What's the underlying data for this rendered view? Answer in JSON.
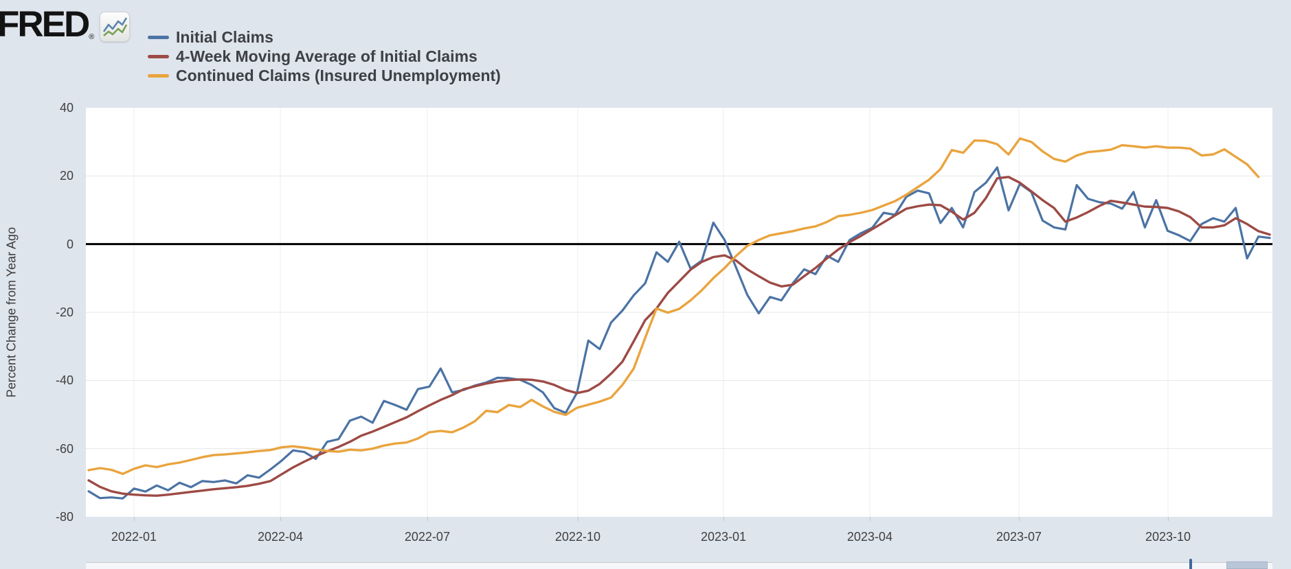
{
  "page": {
    "background": "#dfe5ed"
  },
  "logo": {
    "text": "FRED",
    "registered": "®",
    "icon": "fred-sparkline-icon"
  },
  "legend": {
    "position": "top-left",
    "items": [
      {
        "label": "Initial Claims",
        "color": "#4b73a4"
      },
      {
        "label": "4-Week Moving Average of Initial Claims",
        "color": "#9d4a45"
      },
      {
        "label": "Continued Claims (Insured Unemployment)",
        "color": "#e9a43e"
      }
    ]
  },
  "chart_data": {
    "type": "line",
    "title": "",
    "xlabel": "",
    "ylabel": "Percent Change from Year Ago",
    "ylim": [
      -80,
      40
    ],
    "yticks": [
      40,
      20,
      0,
      -20,
      -40,
      -60,
      -80
    ],
    "zero_line": true,
    "grid": true,
    "x_unit": "week",
    "xticks": [
      {
        "label": "2022-01",
        "i": 3.99
      },
      {
        "label": "2022-04",
        "i": 16.88
      },
      {
        "label": "2022-07",
        "i": 29.82
      },
      {
        "label": "2022-10",
        "i": 43.07
      },
      {
        "label": "2023-01",
        "i": 55.9
      },
      {
        "label": "2023-04",
        "i": 68.78
      },
      {
        "label": "2023-07",
        "i": 81.91
      },
      {
        "label": "2023-10",
        "i": 95.04
      }
    ],
    "series": [
      {
        "name": "Initial Claims",
        "color": "#4b73a4",
        "width": 3.2,
        "values": [
          -72.5,
          -74.5,
          -74.3,
          -74.6,
          -71.7,
          -72.6,
          -70.8,
          -72.2,
          -70,
          -71.3,
          -69.5,
          -69.8,
          -69.3,
          -70.2,
          -67.8,
          -68.5,
          -66.1,
          -63.5,
          -60.5,
          -61,
          -63,
          -58,
          -57.2,
          -51.8,
          -50.6,
          -52.4,
          -46,
          -47.2,
          -48.6,
          -42.5,
          -41.8,
          -36.5,
          -43.5,
          -42.8,
          -41.5,
          -40.6,
          -39.2,
          -39.3,
          -39.8,
          -41.3,
          -43.5,
          -48.1,
          -49.5,
          -43.6,
          -28.3,
          -30.8,
          -23,
          -19.5,
          -15,
          -11.5,
          -2.4,
          -5.2,
          0.7,
          -7.2,
          -4.8,
          6.3,
          1.2,
          -6.8,
          -14.9,
          -20.3,
          -15.5,
          -16.5,
          -11.5,
          -7.4,
          -8.8,
          -3.4,
          -5.2,
          1.2,
          3.2,
          4.8,
          9.2,
          8.6,
          13.9,
          15.7,
          14.9,
          6.2,
          10.6,
          4.9,
          15.3,
          18,
          22.5,
          9.9,
          17.7,
          15.3,
          6.9,
          4.9,
          4.3,
          17.3,
          13.3,
          12.3,
          11.9,
          10.4,
          15.3,
          4.9,
          12.9,
          3.9,
          2.6,
          0.9,
          5.9,
          7.6,
          6.6,
          10.6,
          -4.2,
          2.2,
          1.8
        ]
      },
      {
        "name": "4-Week Moving Average of Initial Claims",
        "color": "#9d4a45",
        "width": 3.4,
        "values": [
          -69.3,
          -71.2,
          -72.5,
          -73.2,
          -73.5,
          -73.7,
          -73.8,
          -73.5,
          -73.1,
          -72.7,
          -72.3,
          -71.9,
          -71.6,
          -71.3,
          -70.9,
          -70.3,
          -69.5,
          -67.5,
          -65.5,
          -63.8,
          -62.2,
          -60.8,
          -59.5,
          -58,
          -56.2,
          -55,
          -53.6,
          -52.2,
          -50.8,
          -49,
          -47.3,
          -45.7,
          -44.3,
          -42.6,
          -41.7,
          -40.9,
          -40.3,
          -39.9,
          -39.7,
          -39.8,
          -40.3,
          -41.3,
          -42.8,
          -43.7,
          -43,
          -41,
          -38,
          -34.5,
          -28.5,
          -22.3,
          -18.9,
          -14.3,
          -10.9,
          -7.5,
          -5.2,
          -3.8,
          -3.3,
          -4.8,
          -7.4,
          -9.4,
          -11.3,
          -12.4,
          -11.9,
          -9.4,
          -7,
          -4.2,
          -1.6,
          0.6,
          2.4,
          4.4,
          6.4,
          8.4,
          10.4,
          11.1,
          11.6,
          11.4,
          9.5,
          7.2,
          9.2,
          13.5,
          19.3,
          19.7,
          18,
          15.5,
          12.9,
          10.6,
          6.6,
          7.8,
          9.4,
          11.2,
          12.7,
          12.2,
          11.6,
          11,
          10.9,
          10.6,
          9.6,
          7.9,
          4.9,
          4.9,
          5.5,
          7.6,
          5.9,
          3.8,
          2.8
        ]
      },
      {
        "name": "Continued Claims (Insured Unemployment)",
        "color": "#e9a43e",
        "width": 3.4,
        "values": [
          -66.3,
          -65.7,
          -66.2,
          -67.4,
          -65.9,
          -64.9,
          -65.4,
          -64.6,
          -64.1,
          -63.3,
          -62.5,
          -61.9,
          -61.7,
          -61.4,
          -61.1,
          -60.7,
          -60.4,
          -59.6,
          -59.3,
          -59.7,
          -60.2,
          -60.7,
          -60.9,
          -60.3,
          -60.5,
          -60,
          -59.1,
          -58.5,
          -58.2,
          -57,
          -55.2,
          -54.8,
          -55.2,
          -53.8,
          -52,
          -48.9,
          -49.3,
          -47.2,
          -47.8,
          -45.7,
          -47.6,
          -49.2,
          -50.1,
          -48,
          -47.1,
          -46.2,
          -45,
          -41.3,
          -36.5,
          -27.5,
          -18.9,
          -20.1,
          -19,
          -16.5,
          -13.5,
          -10,
          -7,
          -3.5,
          -0.5,
          1.2,
          2.6,
          3.2,
          3.8,
          4.6,
          5.2,
          6.5,
          8.2,
          8.6,
          9.2,
          10,
          11.3,
          12.6,
          14.5,
          16.7,
          18.9,
          22,
          27.6,
          26.8,
          30.4,
          30.3,
          29.3,
          26.3,
          31,
          30,
          27.2,
          25,
          24.2,
          26,
          27,
          27.3,
          27.7,
          29,
          28.7,
          28.3,
          28.7,
          28.3,
          28.3,
          28,
          26,
          26.3,
          27.8,
          25.6,
          23.4,
          19.7
        ]
      }
    ]
  },
  "colors": {
    "plot_background": "#ffffff",
    "page_background": "#dfe5ed",
    "gridline": "#e7e7e7",
    "vertical_gridline": "#eaedf0",
    "zero_line": "#000000",
    "tick_text": "#3f3f3f"
  },
  "range_slider": {
    "selected_handle": "right",
    "spike": "initial-claims-history-spike"
  }
}
